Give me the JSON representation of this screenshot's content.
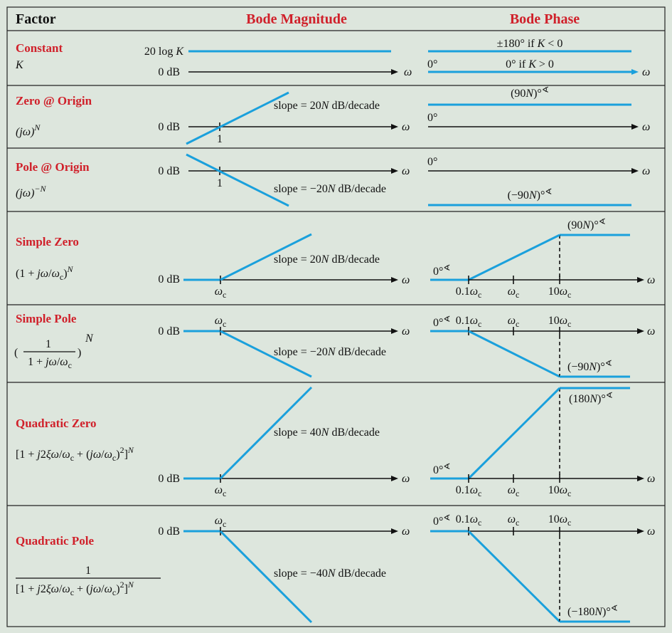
{
  "headers": {
    "factor": "Factor",
    "magnitude": "Bode Magnitude",
    "phase": "Bode Phase"
  },
  "rows": [
    {
      "name": "Constant",
      "expr": "K",
      "mag_labels": [
        "20 log K",
        "0 dB",
        "ω"
      ],
      "phase_labels": [
        "±180° if K < 0",
        "0°",
        "0° if K > 0",
        "ω"
      ]
    },
    {
      "name": "Zero @ Origin",
      "expr": "(jω)^N",
      "mag_labels": [
        "0 dB",
        "1",
        "ω",
        "slope = 20N dB/decade"
      ],
      "phase_labels": [
        "(90N)°∢",
        "0°",
        "ω"
      ]
    },
    {
      "name": "Pole @ Origin",
      "expr": "(jω)^−N",
      "mag_labels": [
        "0 dB",
        "1",
        "ω",
        "slope = −20N dB/decade"
      ],
      "phase_labels": [
        "0°",
        "(−90N)°∢",
        "ω"
      ]
    },
    {
      "name": "Simple Zero",
      "expr": "(1 + jω/ωc)^N",
      "mag_labels": [
        "0 dB",
        "ωc",
        "ω",
        "slope = 20N dB/decade"
      ],
      "phase_labels": [
        "(90N)°∢",
        "0°∢",
        "0.1ωc",
        "ωc",
        "10ωc",
        "ω"
      ]
    },
    {
      "name": "Simple Pole",
      "expr": "(1 / (1 + jω/ωc))^N",
      "mag_labels": [
        "0 dB",
        "ωc",
        "ω",
        "slope = −20N dB/decade"
      ],
      "phase_labels": [
        "0°∢",
        "0.1ωc",
        "ωc",
        "10ωc",
        "ω",
        "(−90N)°∢"
      ]
    },
    {
      "name": "Quadratic Zero",
      "expr": "[1 + j2ξω/ωc + (jω/ωc)²]^N",
      "mag_labels": [
        "0 dB",
        "ωc",
        "ω",
        "slope = 40N dB/decade"
      ],
      "phase_labels": [
        "(180N)°∢",
        "0°∢",
        "0.1ωc",
        "ωc",
        "10ωc",
        "ω"
      ]
    },
    {
      "name": "Quadratic Pole",
      "expr": "1 / [1 + j2ξω/ωc + (jω/ωc)²]^N",
      "mag_labels": [
        "0 dB",
        "ωc",
        "ω",
        "slope = −40N dB/decade"
      ],
      "phase_labels": [
        "0°∢",
        "0.1ωc",
        "ωc",
        "10ωc",
        "ω",
        "(−180N)°∢"
      ]
    }
  ],
  "colors": {
    "line": "#1aa0dc",
    "accent_red": "#d0202a",
    "background": "#dde6dd"
  }
}
